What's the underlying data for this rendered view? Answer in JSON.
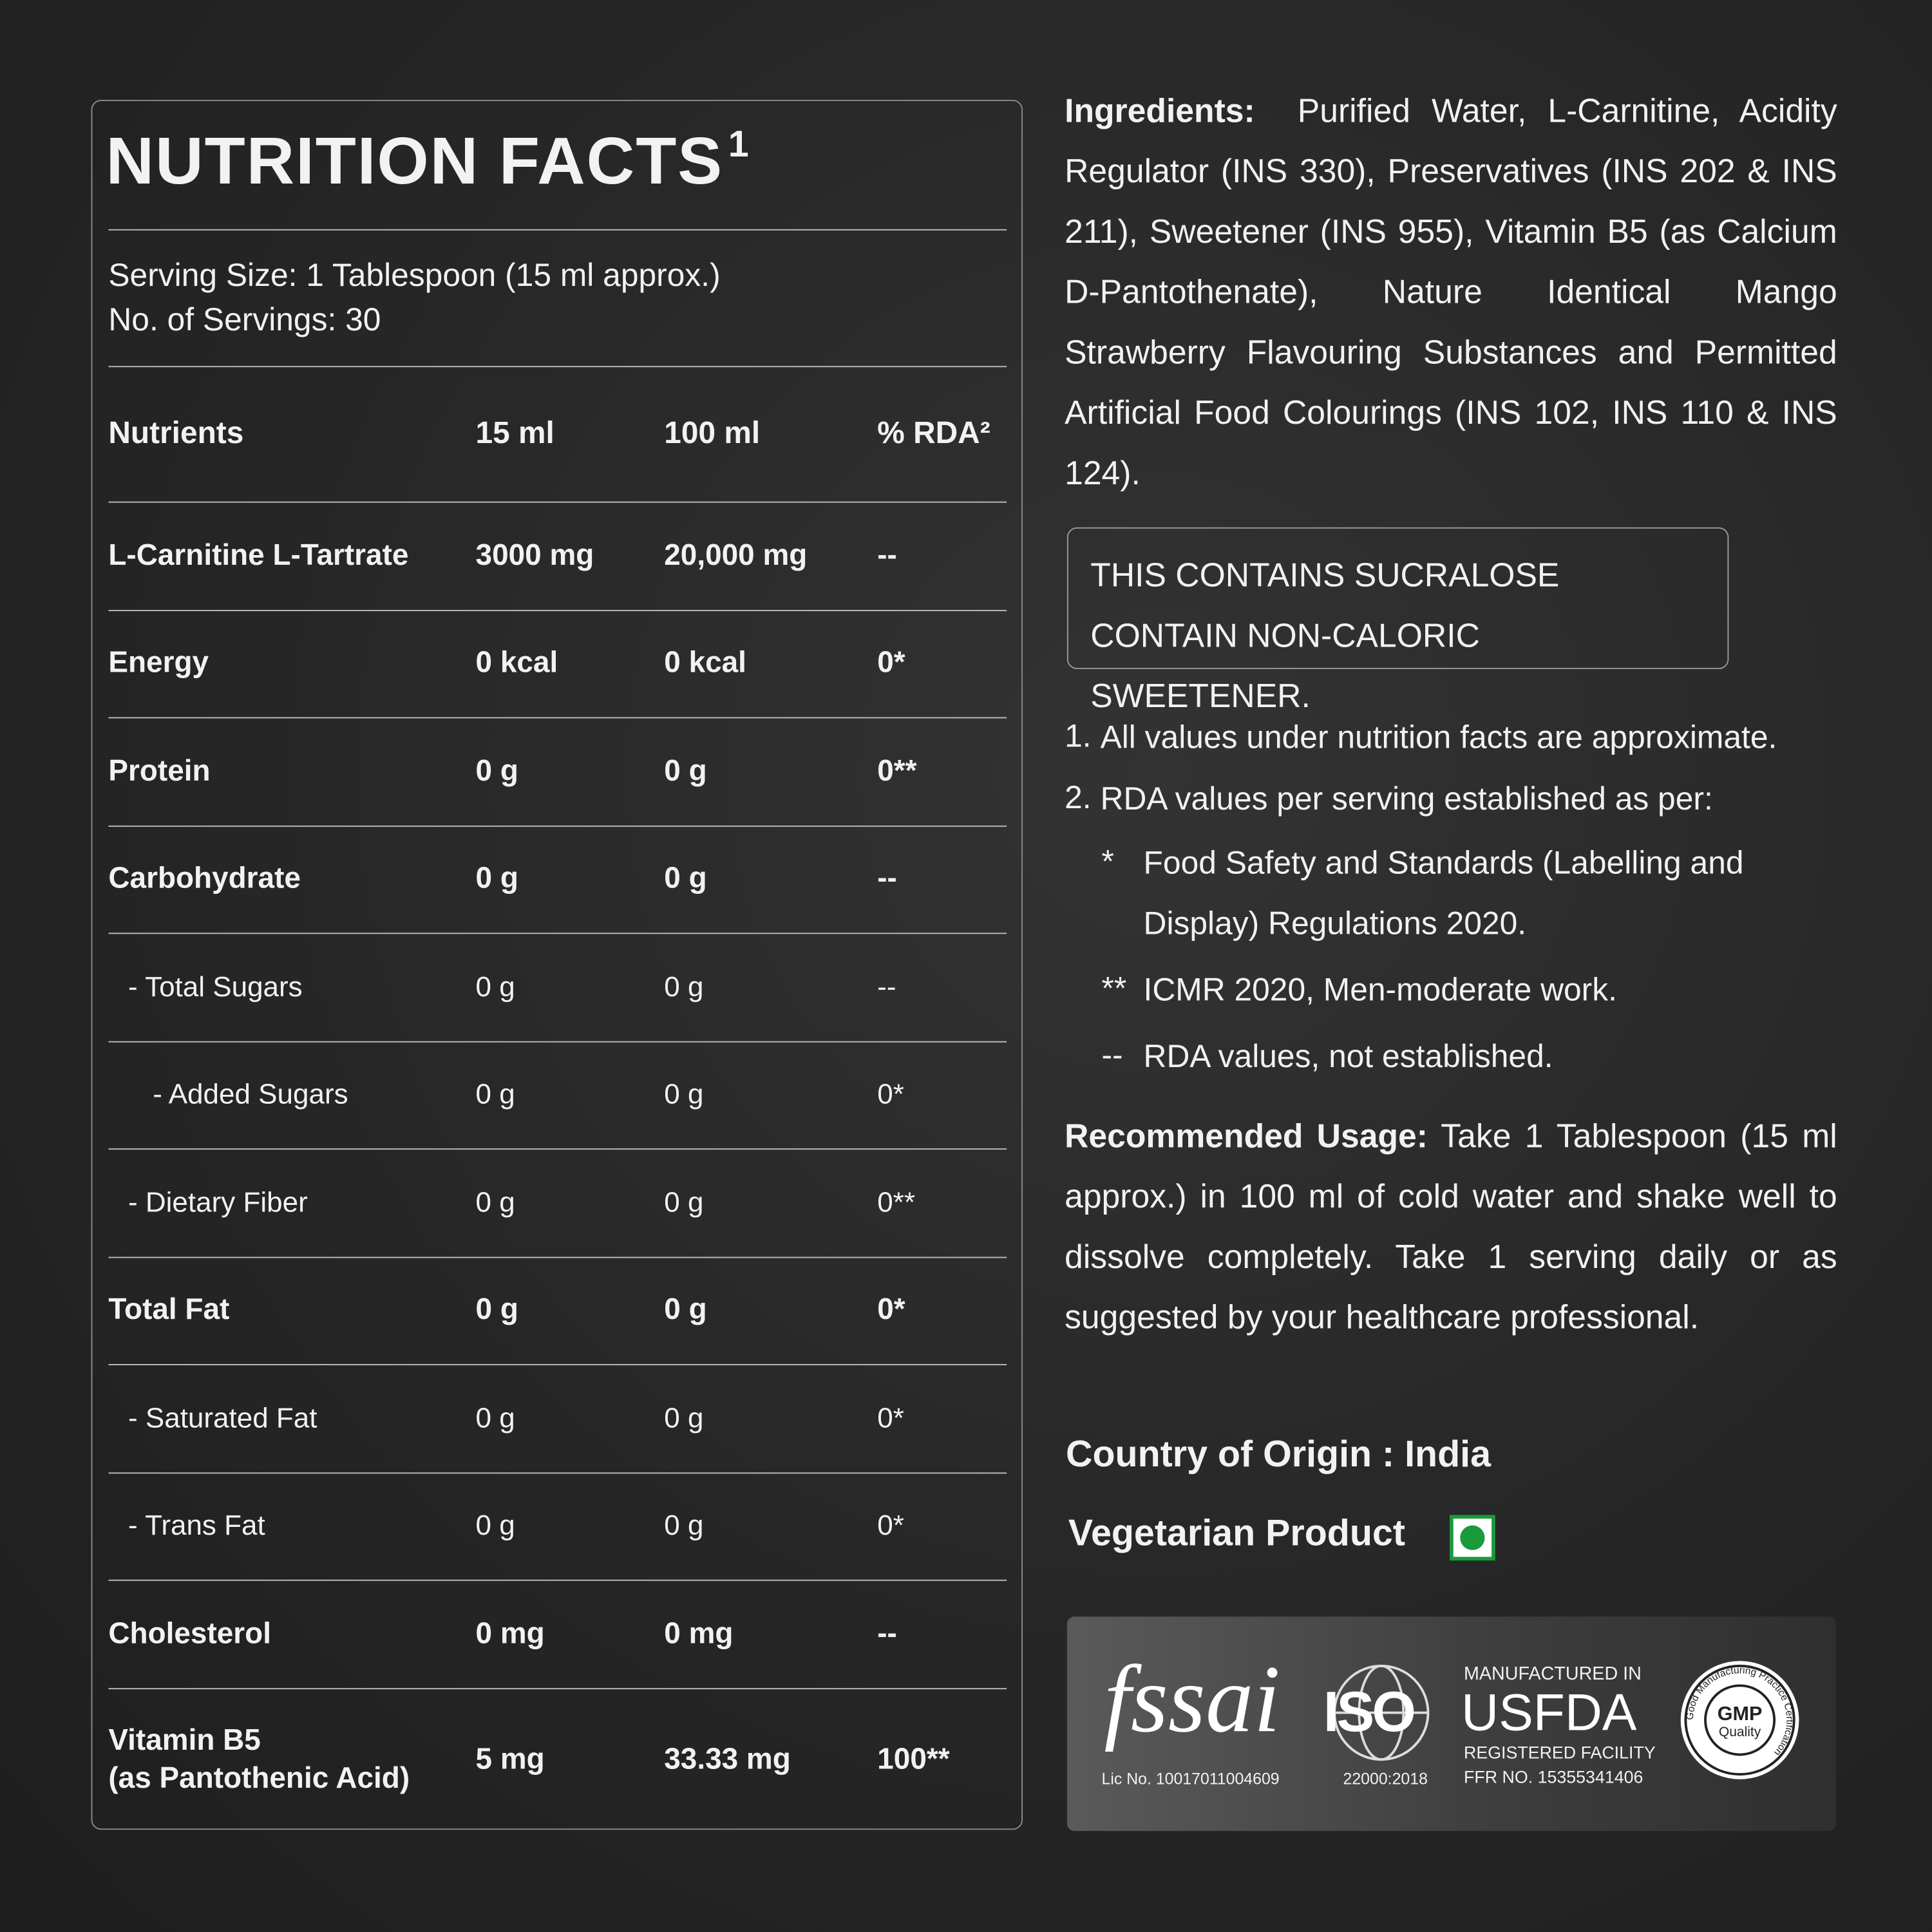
{
  "nutrition": {
    "title": "NUTRITION FACTS",
    "title_sup": "1",
    "serving_size": "Serving Size: 1 Tablespoon (15 ml approx.)",
    "servings": "No. of Servings: 30",
    "headers": [
      "Nutrients",
      "15 ml",
      "100 ml",
      "% RDA²"
    ],
    "rows": [
      [
        "L-Carnitine L-Tartrate",
        "3000 mg",
        "20,000 mg",
        "--"
      ],
      [
        "Energy",
        "0 kcal",
        "0 kcal",
        "0*"
      ],
      [
        "Protein",
        "0 g",
        "0 g",
        "0**"
      ],
      [
        "Carbohydrate",
        "0 g",
        "0 g",
        "--"
      ],
      [
        "- Total Sugars",
        "0 g",
        "0 g",
        "--"
      ],
      [
        "- Added Sugars",
        "0 g",
        "0 g",
        "0*"
      ],
      [
        "- Dietary Fiber",
        "0 g",
        "0 g",
        "0**"
      ],
      [
        "Total Fat",
        "0 g",
        "0 g",
        "0*"
      ],
      [
        "- Saturated Fat",
        "0 g",
        "0 g",
        "0*"
      ],
      [
        "- Trans Fat",
        "0 g",
        "0 g",
        "0*"
      ],
      [
        "Cholesterol",
        "0 mg",
        "0 mg",
        "--"
      ],
      [
        "Vitamin B5\n(as Pantothenic Acid)",
        "5 mg",
        "33.33 mg",
        "100**"
      ]
    ]
  },
  "ingredients": {
    "label": "Ingredients:",
    "text": "Purified Water, L-Carnitine, Acidity Regulator (INS 330), Preservatives (INS 202 & INS 211), Sweetener (INS 955), Vitamin B5 (as Calcium D-Pantothenate), Nature Identical Mango Strawberry Flavouring Substances and Permitted Artificial Food Colourings (INS 102, INS 110 & INS 124)."
  },
  "warning": [
    "THIS CONTAINS SUCRALOSE",
    "CONTAIN NON-CALORIC SWEETENER."
  ],
  "notes": [
    {
      "marker": "1.",
      "text": "All values under nutrition facts are approximate."
    },
    {
      "marker": "2.",
      "text": "RDA values per serving established as per:"
    },
    {
      "marker": "*",
      "text": "Food Safety and Standards (Labelling and\nDisplay) Regulations 2020."
    },
    {
      "marker": "**",
      "text": "ICMR 2020, Men-moderate work."
    },
    {
      "marker": "--",
      "text": "RDA values, not established."
    }
  ],
  "usage": {
    "label": "Recommended Usage:",
    "text": "Take 1 Tablespoon (15 ml approx.) in 100 ml of cold water and shake well to dissolve completely. Take 1 serving daily or as suggested by your healthcare professional."
  },
  "origin": "Country of Origin : India",
  "vegetarian": "Vegetarian Product",
  "certifications": {
    "fssai": "fssai",
    "fssai_lic": "Lic No. 10017011004609",
    "iso": "ISO",
    "iso_std": "22000:2018",
    "usfda_top": "MANUFACTURED IN",
    "usfda": "USFDA",
    "usfda_sub": "REGISTERED FACILITY",
    "usfda_ffr": "FFR NO. 15355341406",
    "gmp": "GMP",
    "gmp_quality": "Quality",
    "gmp_ring": "Good Manufacturing Practice Certification"
  }
}
